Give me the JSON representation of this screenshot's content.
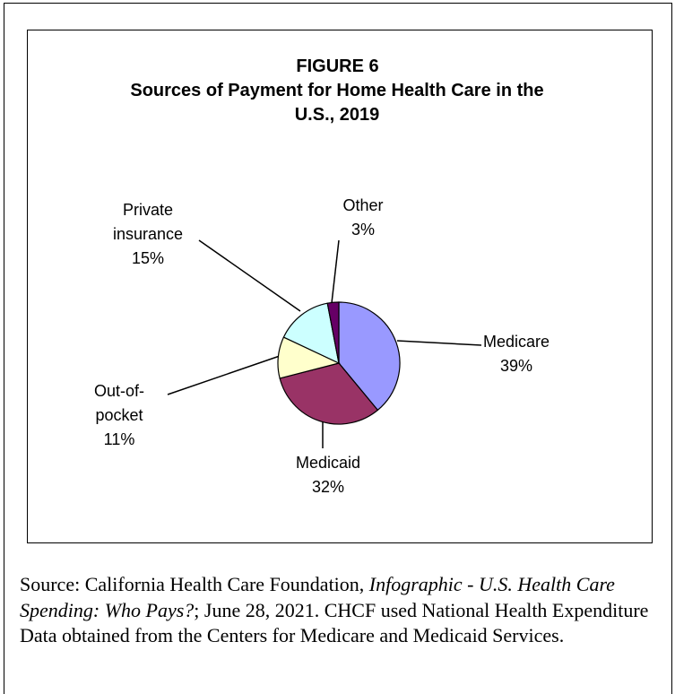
{
  "chart_data": {
    "type": "pie",
    "title": "FIGURE 6",
    "subtitle": "Sources of Payment for Home Health Care in the U.S., 2019",
    "categories": [
      "Medicare",
      "Medicaid",
      "Out-of-pocket",
      "Private insurance",
      "Other"
    ],
    "values": [
      39,
      32,
      11,
      15,
      3
    ],
    "value_labels": [
      "39%",
      "32%",
      "11%",
      "15%",
      "3%"
    ],
    "colors": [
      "#9999ff",
      "#993366",
      "#ffffcc",
      "#ccffff",
      "#660066"
    ],
    "source": {
      "before": "Source: California Health Care Foundation, ",
      "italic": "Infographic - U.S. Health Care Spending: Who Pays?",
      "after": "; June 28, 2021. CHCF used National Health Expenditure Data obtained from the Centers for Medicare and Medicaid Services."
    }
  }
}
